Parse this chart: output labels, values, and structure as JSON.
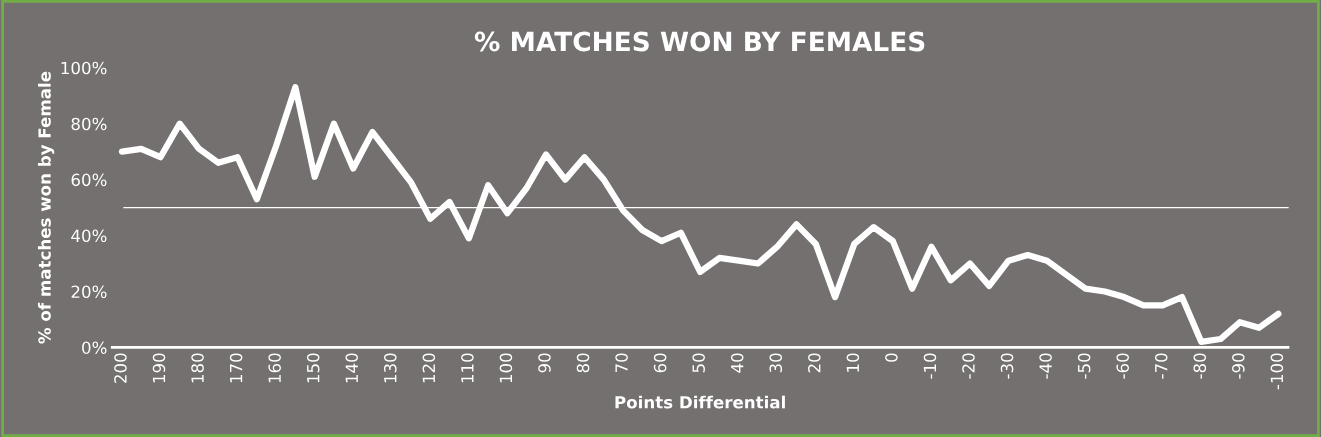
{
  "chart_data": {
    "type": "line",
    "title": "% MATCHES WON BY FEMALES",
    "xlabel": "Points Differential",
    "ylabel": "% of matches won by Female",
    "categories": [
      "200",
      null,
      "190",
      null,
      "180",
      null,
      "170",
      null,
      "160",
      null,
      "150",
      null,
      "140",
      null,
      "130",
      null,
      "120",
      null,
      "110",
      null,
      "100",
      null,
      "90",
      null,
      "80",
      null,
      "70",
      null,
      "60",
      null,
      "50",
      null,
      "40",
      null,
      "30",
      null,
      "20",
      null,
      "10",
      null,
      "0",
      null,
      "-10",
      null,
      "-20",
      null,
      "-30",
      null,
      "-40",
      null,
      "-50",
      null,
      "-60",
      null,
      "-70",
      null,
      "-80",
      null,
      "-90",
      null,
      "-100"
    ],
    "series": [
      {
        "color": "#ffffff",
        "values": [
          70,
          71,
          68,
          80,
          71,
          66,
          68,
          53,
          72,
          93,
          61,
          80,
          64,
          77,
          68,
          59,
          46,
          52,
          39,
          58,
          48,
          57,
          69,
          60,
          68,
          60,
          49,
          42,
          38,
          41,
          27,
          32,
          31,
          30,
          36,
          44,
          37,
          18,
          37,
          43,
          38,
          21,
          36,
          24,
          30,
          22,
          31,
          33,
          31,
          26,
          21,
          20,
          18,
          15,
          15,
          18,
          2,
          3,
          9,
          7,
          12
        ]
      }
    ],
    "ylim": [
      0,
      100
    ],
    "yticks": [
      {
        "value": 0,
        "label": "0%"
      },
      {
        "value": 20,
        "label": "20%"
      },
      {
        "value": 40,
        "label": "40%"
      },
      {
        "value": 60,
        "label": "60%"
      },
      {
        "value": 80,
        "label": "80%"
      },
      {
        "value": 100,
        "label": "100%"
      }
    ],
    "ref_lines": [
      {
        "axis": "y",
        "value": 50,
        "color": "#ffffff"
      }
    ],
    "grid": false,
    "legend": false,
    "marker": "none",
    "line_style": "solid"
  }
}
